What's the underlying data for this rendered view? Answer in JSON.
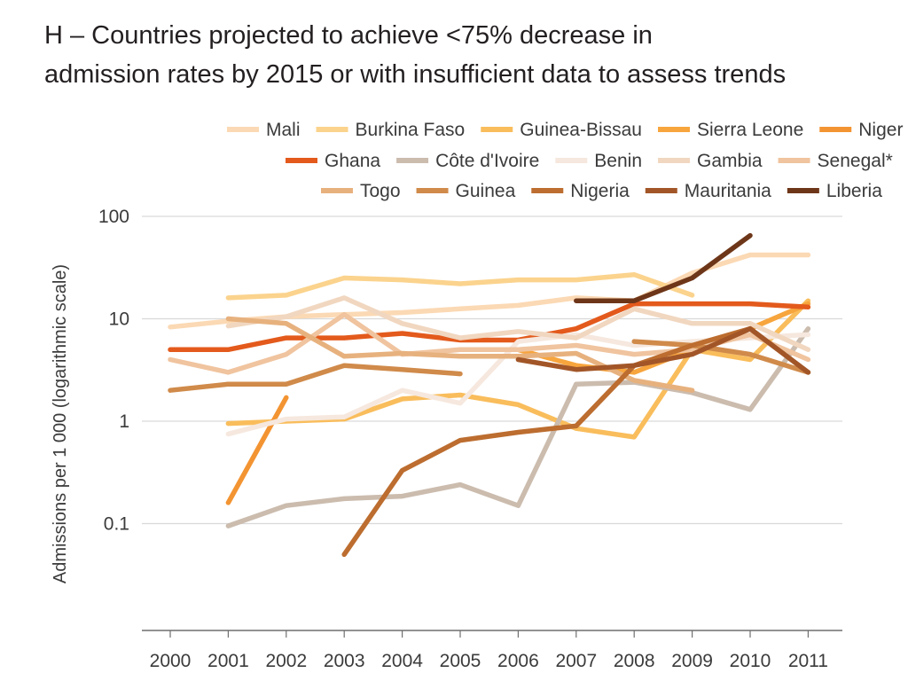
{
  "chart_data": {
    "type": "line",
    "title_line1": "H – Countries projected to achieve <75% decrease in",
    "title_line2": "admission rates by 2015 or with insufficient data to assess trends",
    "ylabel": "Admissions per 1 000 (logarithmic scale)",
    "y_scale": "log",
    "ylim": [
      0.01,
      100
    ],
    "y_ticks": [
      {
        "value": 100,
        "label": "100"
      },
      {
        "value": 10,
        "label": "10"
      },
      {
        "value": 1,
        "label": "1"
      },
      {
        "value": 0.1,
        "label": "0.1"
      }
    ],
    "x": [
      "2000",
      "2001",
      "2002",
      "2003",
      "2004",
      "2005",
      "2006",
      "2007",
      "2008",
      "2009",
      "2010",
      "2011"
    ],
    "legend_position": "top",
    "grid": "horizontal",
    "series": [
      {
        "name": "Mali",
        "color": "#fbd9b4",
        "values": [
          8.3,
          9.5,
          10.5,
          11,
          11.5,
          12.5,
          13.5,
          16,
          15,
          28,
          42,
          42
        ]
      },
      {
        "name": "Burkina Faso",
        "color": "#fbd38d",
        "values": [
          null,
          16,
          17,
          25,
          24,
          22,
          24,
          24,
          27,
          17,
          null,
          null
        ]
      },
      {
        "name": "Guinea-Bissau",
        "color": "#f9bd5c",
        "values": [
          null,
          0.95,
          1,
          1.05,
          1.65,
          1.8,
          1.45,
          0.85,
          0.7,
          5,
          4,
          15
        ]
      },
      {
        "name": "Sierra Leone",
        "color": "#f7a53d",
        "values": [
          null,
          null,
          null,
          null,
          null,
          5,
          5,
          3.5,
          3,
          5,
          8,
          14
        ]
      },
      {
        "name": "Niger",
        "color": "#f39432",
        "values": [
          null,
          0.16,
          1.7,
          null,
          null,
          null,
          null,
          null,
          null,
          null,
          null,
          null
        ]
      },
      {
        "name": "Ghana",
        "color": "#e35a1c",
        "values": [
          5,
          5,
          6.5,
          6.5,
          7.2,
          6.2,
          6.2,
          8,
          14,
          14,
          14,
          13
        ]
      },
      {
        "name": "Côte d'Ivoire",
        "color": "#cbbcae",
        "values": [
          null,
          0.095,
          0.15,
          0.175,
          0.185,
          0.24,
          0.15,
          2.3,
          2.4,
          1.9,
          1.3,
          8
        ]
      },
      {
        "name": "Benin",
        "color": "#f6e8de",
        "values": [
          null,
          0.75,
          1.05,
          1.1,
          2,
          1.5,
          6,
          7,
          5.5,
          6,
          6.5,
          7
        ]
      },
      {
        "name": "Gambia",
        "color": "#f1d7c0",
        "values": [
          null,
          8.5,
          10.5,
          16,
          9,
          6.5,
          7.5,
          6.5,
          12.5,
          9,
          9,
          5
        ]
      },
      {
        "name": "Senegal*",
        "color": "#f0c49f",
        "values": [
          4,
          3,
          4.5,
          11,
          4.5,
          5,
          5,
          5.5,
          4.5,
          5,
          7,
          4
        ]
      },
      {
        "name": "Togo",
        "color": "#e7b17e",
        "values": [
          null,
          10,
          9,
          4.3,
          4.6,
          4.3,
          4.3,
          4.6,
          2.5,
          2,
          null,
          null
        ]
      },
      {
        "name": "Guinea",
        "color": "#d08a4a",
        "values": [
          2,
          2.3,
          2.3,
          3.5,
          3.2,
          2.9,
          null,
          null,
          6,
          5.5,
          4.5,
          3
        ]
      },
      {
        "name": "Nigeria",
        "color": "#bc6d2f",
        "values": [
          null,
          null,
          null,
          0.05,
          0.33,
          0.65,
          0.78,
          0.9,
          3.5,
          5.5,
          8,
          3
        ]
      },
      {
        "name": "Mauritania",
        "color": "#a25628",
        "values": [
          null,
          null,
          null,
          null,
          null,
          null,
          4,
          3.2,
          3.5,
          4.5,
          8,
          3
        ]
      },
      {
        "name": "Liberia",
        "color": "#6e3619",
        "values": [
          null,
          null,
          null,
          null,
          null,
          null,
          null,
          15,
          15,
          25,
          65,
          null
        ]
      }
    ]
  }
}
